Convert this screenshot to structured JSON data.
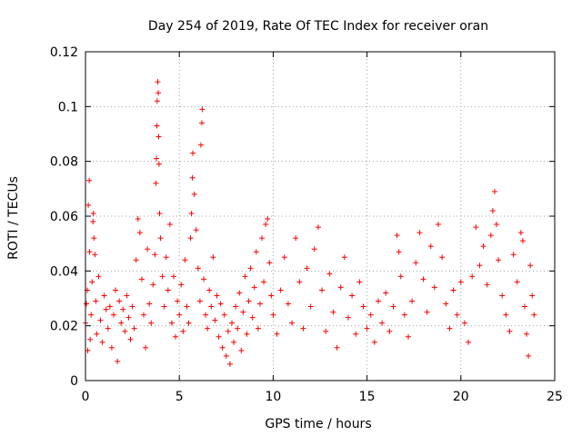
{
  "chart_data": {
    "type": "scatter",
    "title": "Day 254 of 2019, Rate Of TEC Index for receiver oran",
    "xlabel": "GPS time / hours",
    "ylabel": "ROTI / TECUs",
    "xlim": [
      0,
      25
    ],
    "ylim": [
      0,
      0.12
    ],
    "x_ticks": [
      0,
      5,
      10,
      15,
      20,
      25
    ],
    "y_ticks": [
      0,
      0.02,
      0.04,
      0.06,
      0.08,
      0.1,
      0.12
    ],
    "x_tick_labels": [
      "0",
      "5",
      "10",
      "15",
      "20",
      "25"
    ],
    "y_tick_labels": [
      "0",
      "0.02",
      "0.04",
      "0.06",
      "0.08",
      "0.1",
      "0.12"
    ],
    "grid": true,
    "marker": "+",
    "color": "#ff0000",
    "series": [
      {
        "name": "ROTI",
        "points": [
          [
            0.0,
            0.021
          ],
          [
            0.05,
            0.028
          ],
          [
            0.1,
            0.033
          ],
          [
            0.12,
            0.011
          ],
          [
            0.15,
            0.064
          ],
          [
            0.2,
            0.073
          ],
          [
            0.22,
            0.047
          ],
          [
            0.25,
            0.015
          ],
          [
            0.3,
            0.024
          ],
          [
            0.35,
            0.036
          ],
          [
            0.4,
            0.058
          ],
          [
            0.42,
            0.061
          ],
          [
            0.45,
            0.052
          ],
          [
            0.5,
            0.046
          ],
          [
            0.55,
            0.029
          ],
          [
            0.6,
            0.017
          ],
          [
            0.7,
            0.038
          ],
          [
            0.8,
            0.022
          ],
          [
            0.9,
            0.014
          ],
          [
            1.0,
            0.031
          ],
          [
            1.1,
            0.026
          ],
          [
            1.2,
            0.019
          ],
          [
            1.3,
            0.027
          ],
          [
            1.4,
            0.012
          ],
          [
            1.5,
            0.024
          ],
          [
            1.6,
            0.033
          ],
          [
            1.7,
            0.007
          ],
          [
            1.8,
            0.029
          ],
          [
            1.9,
            0.021
          ],
          [
            2.0,
            0.026
          ],
          [
            2.1,
            0.018
          ],
          [
            2.2,
            0.031
          ],
          [
            2.3,
            0.023
          ],
          [
            2.4,
            0.015
          ],
          [
            2.5,
            0.027
          ],
          [
            2.6,
            0.019
          ],
          [
            2.7,
            0.044
          ],
          [
            2.8,
            0.059
          ],
          [
            2.9,
            0.054
          ],
          [
            3.0,
            0.037
          ],
          [
            3.1,
            0.024
          ],
          [
            3.2,
            0.012
          ],
          [
            3.3,
            0.048
          ],
          [
            3.4,
            0.028
          ],
          [
            3.5,
            0.021
          ],
          [
            3.6,
            0.035
          ],
          [
            3.7,
            0.046
          ],
          [
            3.75,
            0.072
          ],
          [
            3.78,
            0.081
          ],
          [
            3.8,
            0.093
          ],
          [
            3.82,
            0.102
          ],
          [
            3.85,
            0.109
          ],
          [
            3.88,
            0.105
          ],
          [
            3.9,
            0.089
          ],
          [
            3.92,
            0.079
          ],
          [
            3.95,
            0.061
          ],
          [
            4.0,
            0.052
          ],
          [
            4.1,
            0.038
          ],
          [
            4.2,
            0.027
          ],
          [
            4.3,
            0.045
          ],
          [
            4.4,
            0.033
          ],
          [
            4.5,
            0.057
          ],
          [
            4.6,
            0.021
          ],
          [
            4.7,
            0.038
          ],
          [
            4.8,
            0.016
          ],
          [
            4.9,
            0.029
          ],
          [
            5.0,
            0.024
          ],
          [
            5.1,
            0.035
          ],
          [
            5.2,
            0.018
          ],
          [
            5.3,
            0.044
          ],
          [
            5.4,
            0.027
          ],
          [
            5.5,
            0.021
          ],
          [
            5.6,
            0.052
          ],
          [
            5.65,
            0.061
          ],
          [
            5.7,
            0.074
          ],
          [
            5.72,
            0.083
          ],
          [
            5.8,
            0.068
          ],
          [
            5.9,
            0.055
          ],
          [
            6.0,
            0.041
          ],
          [
            6.1,
            0.029
          ],
          [
            6.15,
            0.086
          ],
          [
            6.2,
            0.094
          ],
          [
            6.22,
            0.099
          ],
          [
            6.3,
            0.037
          ],
          [
            6.4,
            0.024
          ],
          [
            6.5,
            0.019
          ],
          [
            6.6,
            0.033
          ],
          [
            6.7,
            0.027
          ],
          [
            6.8,
            0.045
          ],
          [
            6.9,
            0.022
          ],
          [
            7.0,
            0.031
          ],
          [
            7.1,
            0.016
          ],
          [
            7.2,
            0.028
          ],
          [
            7.3,
            0.012
          ],
          [
            7.4,
            0.024
          ],
          [
            7.5,
            0.009
          ],
          [
            7.6,
            0.018
          ],
          [
            7.7,
            0.006
          ],
          [
            7.8,
            0.021
          ],
          [
            7.9,
            0.014
          ],
          [
            8.0,
            0.027
          ],
          [
            8.1,
            0.019
          ],
          [
            8.2,
            0.032
          ],
          [
            8.3,
            0.011
          ],
          [
            8.4,
            0.025
          ],
          [
            8.5,
            0.038
          ],
          [
            8.6,
            0.017
          ],
          [
            8.7,
            0.029
          ],
          [
            8.8,
            0.041
          ],
          [
            8.9,
            0.023
          ],
          [
            9.0,
            0.034
          ],
          [
            9.1,
            0.047
          ],
          [
            9.2,
            0.019
          ],
          [
            9.3,
            0.028
          ],
          [
            9.4,
            0.052
          ],
          [
            9.5,
            0.036
          ],
          [
            9.6,
            0.057
          ],
          [
            9.7,
            0.059
          ],
          [
            9.8,
            0.043
          ],
          [
            9.9,
            0.031
          ],
          [
            10.0,
            0.024
          ],
          [
            10.2,
            0.017
          ],
          [
            10.4,
            0.033
          ],
          [
            10.6,
            0.045
          ],
          [
            10.8,
            0.028
          ],
          [
            11.0,
            0.021
          ],
          [
            11.2,
            0.052
          ],
          [
            11.4,
            0.036
          ],
          [
            11.6,
            0.019
          ],
          [
            11.8,
            0.041
          ],
          [
            12.0,
            0.027
          ],
          [
            12.2,
            0.048
          ],
          [
            12.4,
            0.056
          ],
          [
            12.6,
            0.033
          ],
          [
            12.8,
            0.018
          ],
          [
            13.0,
            0.039
          ],
          [
            13.2,
            0.025
          ],
          [
            13.4,
            0.012
          ],
          [
            13.6,
            0.034
          ],
          [
            13.8,
            0.045
          ],
          [
            14.0,
            0.023
          ],
          [
            14.2,
            0.031
          ],
          [
            14.4,
            0.017
          ],
          [
            14.6,
            0.036
          ],
          [
            14.8,
            0.027
          ],
          [
            15.0,
            0.019
          ],
          [
            15.2,
            0.024
          ],
          [
            15.4,
            0.014
          ],
          [
            15.6,
            0.029
          ],
          [
            15.8,
            0.021
          ],
          [
            16.0,
            0.032
          ],
          [
            16.2,
            0.018
          ],
          [
            16.4,
            0.027
          ],
          [
            16.6,
            0.053
          ],
          [
            16.7,
            0.047
          ],
          [
            16.8,
            0.038
          ],
          [
            17.0,
            0.024
          ],
          [
            17.2,
            0.016
          ],
          [
            17.4,
            0.029
          ],
          [
            17.6,
            0.043
          ],
          [
            17.8,
            0.054
          ],
          [
            18.0,
            0.037
          ],
          [
            18.2,
            0.025
          ],
          [
            18.4,
            0.049
          ],
          [
            18.6,
            0.034
          ],
          [
            18.8,
            0.057
          ],
          [
            19.0,
            0.045
          ],
          [
            19.2,
            0.028
          ],
          [
            19.4,
            0.019
          ],
          [
            19.6,
            0.033
          ],
          [
            19.8,
            0.024
          ],
          [
            20.0,
            0.036
          ],
          [
            20.2,
            0.021
          ],
          [
            20.4,
            0.014
          ],
          [
            20.6,
            0.038
          ],
          [
            20.8,
            0.056
          ],
          [
            21.0,
            0.042
          ],
          [
            21.2,
            0.049
          ],
          [
            21.4,
            0.035
          ],
          [
            21.6,
            0.053
          ],
          [
            21.7,
            0.062
          ],
          [
            21.8,
            0.069
          ],
          [
            21.9,
            0.057
          ],
          [
            22.0,
            0.044
          ],
          [
            22.2,
            0.031
          ],
          [
            22.4,
            0.024
          ],
          [
            22.6,
            0.018
          ],
          [
            22.8,
            0.046
          ],
          [
            23.0,
            0.036
          ],
          [
            23.2,
            0.054
          ],
          [
            23.3,
            0.051
          ],
          [
            23.4,
            0.027
          ],
          [
            23.5,
            0.017
          ],
          [
            23.6,
            0.009
          ],
          [
            23.7,
            0.042
          ],
          [
            23.8,
            0.031
          ],
          [
            23.9,
            0.024
          ]
        ]
      }
    ]
  }
}
